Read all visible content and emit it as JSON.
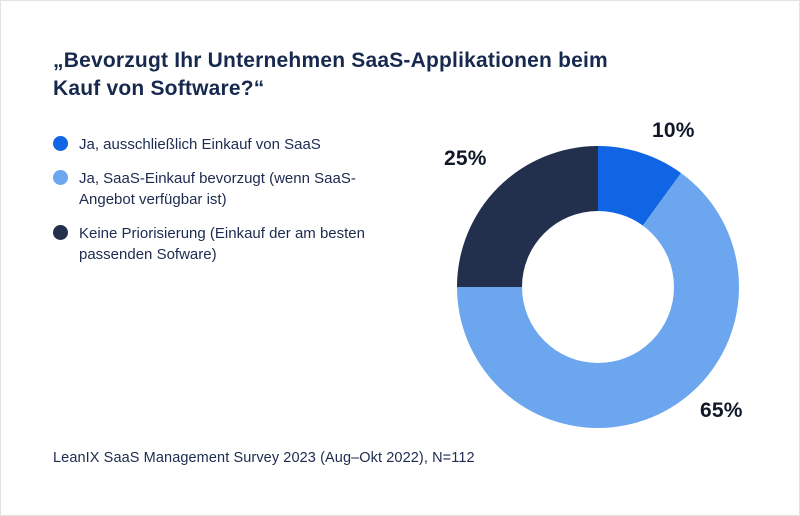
{
  "chart_data": {
    "type": "pie",
    "subtype": "donut",
    "title": "„Bevorzugt Ihr Unternehmen SaaS-Applikationen beim Kauf von Software?“",
    "series": [
      {
        "name": "Ja, ausschließlich Einkauf von SaaS",
        "value": 10,
        "label": "10%",
        "color": "#1065e5"
      },
      {
        "name": "Ja, SaaS-Einkauf bevorzugt (wenn SaaS-Angebot verfügbar ist)",
        "value": 65,
        "label": "65%",
        "color": "#6ba6ef"
      },
      {
        "name": "Keine Priorisierung (Einkauf der am besten passenden Sofware)",
        "value": 25,
        "label": "25%",
        "color": "#22304e"
      }
    ],
    "order_clockwise_from_top": [
      "10%",
      "65%",
      "25%"
    ],
    "start_angle_deg": 0,
    "direction": "clockwise",
    "donut_hole_ratio": 0.54,
    "legend_position": "left",
    "source": "LeanIX SaaS Management Survey 2023 (Aug–Okt 2022), N=112"
  }
}
